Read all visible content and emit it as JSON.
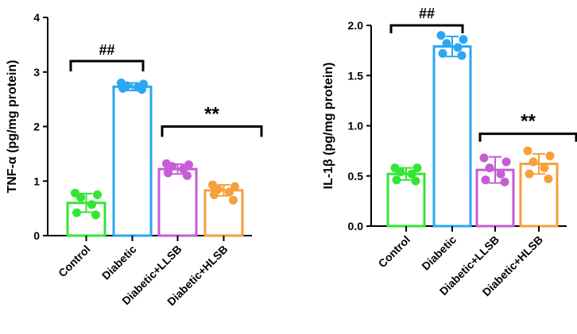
{
  "chart_data": [
    {
      "type": "bar",
      "panel": "left",
      "ylabel": "TNF-α (pg/mg protein)",
      "ylim": [
        0,
        4
      ],
      "yticks": [
        0,
        1,
        2,
        3,
        4
      ],
      "ytick_labels": [
        "0",
        "1",
        "2",
        "3",
        "4"
      ],
      "categories": [
        "Control",
        "Diabetic",
        "Diabetic+LLSB",
        "Diabetic+HLSB"
      ],
      "colors": [
        "#33e633",
        "#2aa7f0",
        "#c65cd6",
        "#f5a03c"
      ],
      "values": [
        0.6,
        2.73,
        1.22,
        0.83
      ],
      "errors": [
        0.17,
        0.07,
        0.09,
        0.1
      ],
      "points": [
        [
          0.78,
          0.75,
          0.7,
          0.57,
          0.42,
          0.38
        ],
        [
          2.8,
          2.78,
          2.75,
          2.72,
          2.7,
          2.68
        ],
        [
          1.32,
          1.3,
          1.27,
          1.22,
          1.15,
          1.1
        ],
        [
          0.93,
          0.9,
          0.85,
          0.8,
          0.75,
          0.65
        ]
      ],
      "annotations": [
        {
          "label": "##",
          "from": 0,
          "to": 1,
          "y": 3.2
        },
        {
          "label": "**",
          "from": 2,
          "to": 3,
          "y": 2.0
        }
      ]
    },
    {
      "type": "bar",
      "panel": "right",
      "ylabel": "IL-1β (pg/mg protein)",
      "ylim": [
        0,
        2
      ],
      "yticks": [
        0,
        0.5,
        1,
        1.5,
        2
      ],
      "ytick_labels": [
        "0.0",
        "0.5",
        "1.0",
        "1.5",
        "2.0"
      ],
      "categories": [
        "Control",
        "Diabetic",
        "Diabetic+LLSB",
        "Diabetic+HLSB"
      ],
      "colors": [
        "#33e633",
        "#2aa7f0",
        "#c65cd6",
        "#f5a03c"
      ],
      "values": [
        0.52,
        1.79,
        0.56,
        0.62
      ],
      "errors": [
        0.06,
        0.1,
        0.13,
        0.1
      ],
      "points": [
        [
          0.58,
          0.58,
          0.54,
          0.52,
          0.46,
          0.45
        ],
        [
          1.9,
          1.86,
          1.82,
          1.78,
          1.72,
          1.7
        ],
        [
          0.68,
          0.64,
          0.58,
          0.52,
          0.46,
          0.44
        ],
        [
          0.75,
          0.7,
          0.64,
          0.58,
          0.52,
          0.47
        ]
      ],
      "annotations": [
        {
          "label": "##",
          "from": 0,
          "to": 1,
          "y": 2.0
        },
        {
          "label": "**",
          "from": 2,
          "to": 3,
          "y": 0.92
        }
      ]
    }
  ]
}
